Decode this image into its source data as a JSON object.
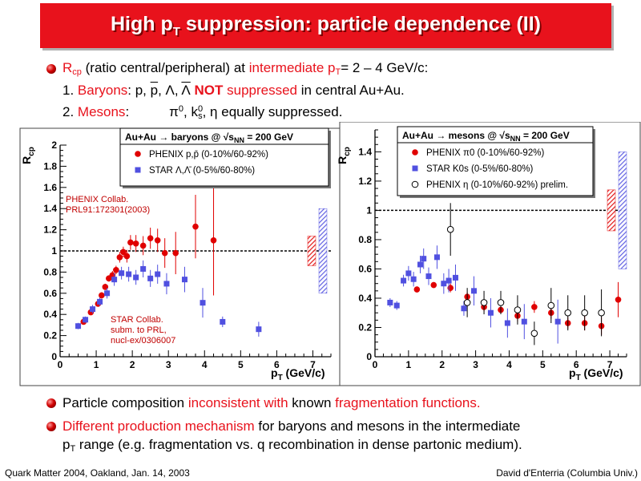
{
  "slide": {
    "title_main": "High p",
    "title_sub": "T",
    "title_rest": " suppression: particle dependence (II)",
    "bullet1": {
      "r": "R",
      "cp": "cp",
      "text1": " (ratio central/peripheral) at ",
      "intermediate": "intermediate",
      "p": " p",
      "t": "T",
      "range": "= 2 – 4 GeV/c:",
      "l2_num": "1. ",
      "baryons": "Baryons",
      "l2_a": ":  p, ",
      "pbar": "p",
      "l2_b": ", Λ, ",
      "lbar": "Λ",
      "l2_not": " NOT",
      "l2_supp": " suppressed",
      "l2_rest": " in central Au+Au.",
      "l3_num": "2. ",
      "mesons": "Mesons",
      "l3_a": ":",
      "pi": "π",
      "pi_sup": "0",
      "l3_b": ", k",
      "k_sup": "0",
      "k_sub": "s",
      "l3_c": ", η  equally suppressed."
    },
    "bullet2": {
      "a": "Particle composition ",
      "b": "inconsistent with",
      "c": " known ",
      "d": "fragmentation functions."
    },
    "bullet3": {
      "a": "Different production mechanism",
      "b": " for baryons and mesons in the intermediate",
      "c": "p",
      "c_sub": "T",
      "d": " range (e.g. fragmentation vs. q recombination in dense partonic medium)."
    },
    "footer_left": "Quark Matter 2004, Oakland, Jan. 14, 2003",
    "footer_right": "David d'Enterria (Columbia Univ.)"
  },
  "chart_data": [
    {
      "type": "scatter",
      "legend_title": "Au+Au → baryons @ √s",
      "legend_title_sub": "NN",
      "legend_title_rest": " = 200 GeV",
      "ylabel": "R",
      "ylabel_sub": "cp",
      "xlabel": "p",
      "xlabel_sub": "T",
      "xlabel_rest": " (GeV/c)",
      "xlim": [
        0,
        7.5
      ],
      "ylim": [
        0,
        2
      ],
      "x_ticks": [
        "0",
        "1",
        "2",
        "3",
        "4",
        "5",
        "6",
        "7"
      ],
      "y_ticks": [
        "0",
        "0.2",
        "0.4",
        "0.6",
        "0.8",
        "1",
        "1.2",
        "1.4",
        "1.6",
        "1.8",
        "2"
      ],
      "reference_line": 1,
      "annotations": [
        {
          "text": [
            "PHENIX Collab.",
            "PRL91:172301(2003)"
          ],
          "color": "#c00000"
        },
        {
          "text": [
            "STAR Collab.",
            "subm. to PRL,",
            "nucl-ex/0306007"
          ],
          "color": "#c00000"
        }
      ],
      "series": [
        {
          "name": "PHENIX p,p̄ (0-10%/60-92%)",
          "marker": "circle",
          "color": "#e00000",
          "x": [
            0.65,
            0.85,
            1.05,
            1.15,
            1.25,
            1.35,
            1.45,
            1.55,
            1.65,
            1.75,
            1.85,
            1.95,
            2.1,
            2.3,
            2.5,
            2.7,
            2.9,
            3.2,
            3.75,
            4.25
          ],
          "y": [
            0.33,
            0.42,
            0.5,
            0.58,
            0.66,
            0.74,
            0.77,
            0.82,
            0.94,
            0.99,
            0.95,
            1.08,
            1.07,
            1.05,
            1.12,
            1.1,
            0.98,
            0.98,
            1.23,
            1.1
          ],
          "err": [
            0.02,
            0.02,
            0.02,
            0.03,
            0.03,
            0.03,
            0.04,
            0.04,
            0.05,
            0.05,
            0.06,
            0.07,
            0.08,
            0.09,
            0.1,
            0.11,
            0.14,
            0.2,
            0.3,
            0.52
          ]
        },
        {
          "name": "STAR Λ,Λ̄ (0-5%/60-80%)",
          "marker": "square",
          "color": "#5050e0",
          "x": [
            0.5,
            0.7,
            0.9,
            1.1,
            1.3,
            1.5,
            1.7,
            1.9,
            2.1,
            2.3,
            2.5,
            2.7,
            2.95,
            3.45,
            3.95,
            4.5,
            5.5
          ],
          "y": [
            0.29,
            0.35,
            0.45,
            0.52,
            0.6,
            0.73,
            0.79,
            0.78,
            0.75,
            0.83,
            0.74,
            0.78,
            0.69,
            0.73,
            0.51,
            0.33,
            0.26
          ],
          "err": [
            0.03,
            0.03,
            0.04,
            0.04,
            0.05,
            0.06,
            0.06,
            0.07,
            0.07,
            0.08,
            0.08,
            0.09,
            0.1,
            0.12,
            0.14,
            0.05,
            0.07
          ]
        }
      ],
      "systematics": [
        {
          "color": "#e00000",
          "center": 1.0,
          "half": 0.14
        },
        {
          "color": "#5050e0",
          "center": 1.0,
          "half": 0.4
        }
      ]
    },
    {
      "type": "scatter",
      "legend_title": "Au+Au → mesons @ √s",
      "legend_title_sub": "NN",
      "legend_title_rest": " = 200 GeV",
      "ylabel": "R",
      "ylabel_sub": "cp",
      "xlabel": "p",
      "xlabel_sub": "T",
      "xlabel_rest": " (GeV/c)",
      "xlim": [
        0,
        7.5
      ],
      "ylim": [
        0,
        1.55
      ],
      "x_ticks": [
        "0",
        "1",
        "2",
        "3",
        "4",
        "5",
        "6",
        "7"
      ],
      "y_ticks": [
        "0",
        "0.2",
        "0.4",
        "0.6",
        "0.8",
        "1",
        "1.2",
        "1.4"
      ],
      "reference_line": 1,
      "series": [
        {
          "name": "PHENIX π0 (0-10%/60-92%)",
          "marker": "circle",
          "color": "#e00000",
          "x": [
            1.25,
            1.75,
            2.25,
            2.75,
            3.25,
            3.75,
            4.25,
            4.75,
            5.25,
            5.75,
            6.25,
            6.75,
            7.25
          ],
          "y": [
            0.46,
            0.49,
            0.47,
            0.41,
            0.34,
            0.32,
            0.28,
            0.34,
            0.3,
            0.23,
            0.23,
            0.21,
            0.39
          ],
          "err": [
            0.02,
            0.02,
            0.03,
            0.03,
            0.03,
            0.03,
            0.04,
            0.04,
            0.04,
            0.04,
            0.05,
            0.06,
            0.12
          ]
        },
        {
          "name": "STAR K0s (0-5%/60-80%)",
          "marker": "square",
          "color": "#5050e0",
          "x": [
            0.45,
            0.65,
            0.85,
            1.0,
            1.15,
            1.35,
            1.45,
            1.6,
            1.85,
            2.05,
            2.2,
            2.4,
            2.65,
            2.95,
            3.45,
            3.95,
            4.45,
            5.45
          ],
          "y": [
            0.37,
            0.35,
            0.52,
            0.57,
            0.53,
            0.63,
            0.67,
            0.55,
            0.68,
            0.5,
            0.52,
            0.54,
            0.33,
            0.45,
            0.3,
            0.23,
            0.24,
            0.24
          ],
          "err": [
            0.03,
            0.03,
            0.04,
            0.05,
            0.05,
            0.06,
            0.07,
            0.06,
            0.08,
            0.07,
            0.08,
            0.09,
            0.05,
            0.1,
            0.1,
            0.1,
            0.12,
            0.15
          ]
        },
        {
          "name": "PHENIX η (0-10%/60-92%) prelim.",
          "marker": "open-circle",
          "color": "#000000",
          "x": [
            2.25,
            2.75,
            3.25,
            3.75,
            4.25,
            4.75,
            5.25,
            5.75,
            6.25,
            6.75
          ],
          "y": [
            0.87,
            0.37,
            0.37,
            0.37,
            0.32,
            0.16,
            0.35,
            0.3,
            0.3,
            0.3
          ],
          "err": [
            0.18,
            0.1,
            0.08,
            0.08,
            0.1,
            0.08,
            0.12,
            0.12,
            0.12,
            0.16
          ]
        }
      ],
      "systematics": [
        {
          "color": "#e00000",
          "center": 1.0,
          "half": 0.14
        },
        {
          "color": "#5050e0",
          "center": 1.0,
          "half": 0.4
        }
      ]
    }
  ]
}
